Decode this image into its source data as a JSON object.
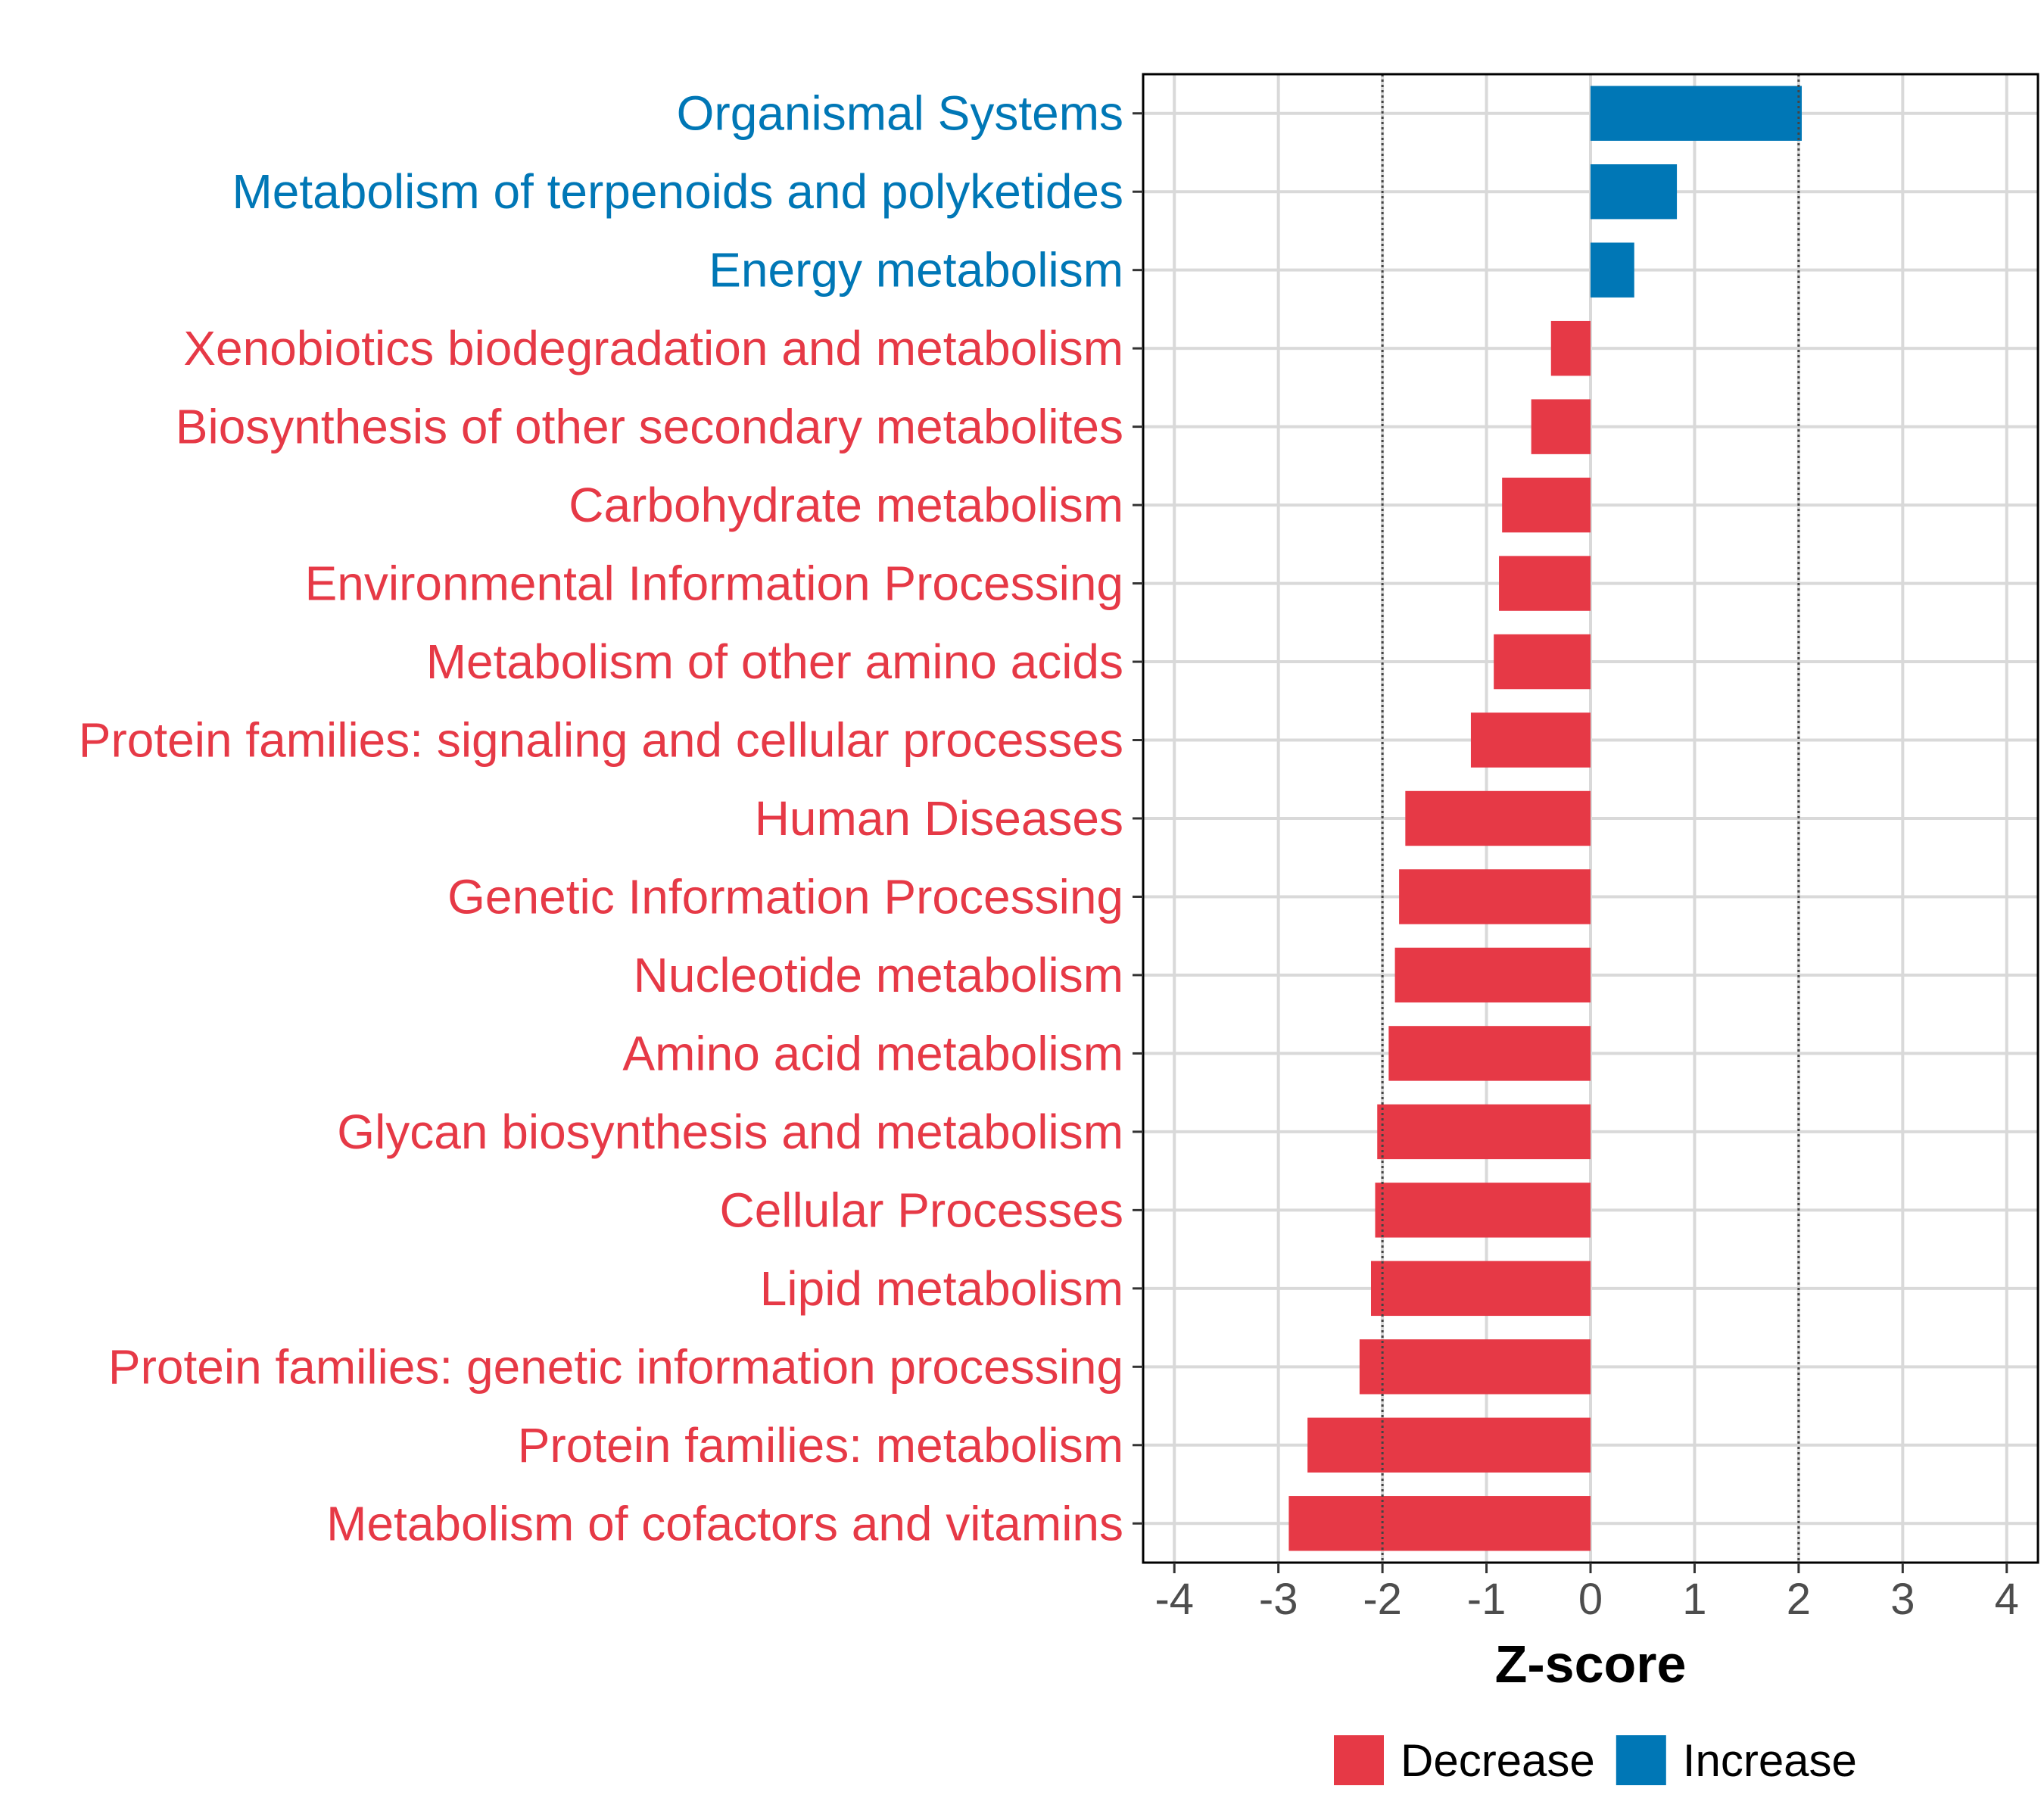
{
  "chart_data": {
    "type": "bar",
    "orientation": "horizontal",
    "xlabel": "Z-score",
    "ylabel": "",
    "xlim": [
      -4.3,
      4.3
    ],
    "xticks": [
      -4,
      -3,
      -2,
      -1,
      0,
      1,
      2,
      3,
      4
    ],
    "xtick_labels": [
      "-4",
      "-3",
      "-2",
      "-1",
      "0",
      "1",
      "2",
      "3",
      "4"
    ],
    "reference_lines": [
      -2,
      2
    ],
    "grid": true,
    "categories": [
      "Organismal Systems",
      "Metabolism of terpenoids and polyketides",
      "Energy metabolism",
      "Xenobiotics biodegradation and metabolism",
      "Biosynthesis of other secondary metabolites",
      "Carbohydrate metabolism",
      "Environmental Information Processing",
      "Metabolism of other amino acids",
      "Protein families: signaling and cellular processes",
      "Human Diseases",
      "Genetic Information Processing",
      "Nucleotide metabolism",
      "Amino acid metabolism",
      "Glycan biosynthesis and metabolism",
      "Cellular Processes",
      "Lipid metabolism",
      "Protein families: genetic information processing",
      "Protein families: metabolism",
      "Metabolism of cofactors and vitamins"
    ],
    "values": [
      2.03,
      0.83,
      0.42,
      -0.38,
      -0.57,
      -0.85,
      -0.88,
      -0.93,
      -1.15,
      -1.78,
      -1.84,
      -1.88,
      -1.94,
      -2.05,
      -2.07,
      -2.11,
      -2.22,
      -2.72,
      -2.9
    ],
    "groups": [
      "Increase",
      "Increase",
      "Increase",
      "Decrease",
      "Decrease",
      "Decrease",
      "Decrease",
      "Decrease",
      "Decrease",
      "Decrease",
      "Decrease",
      "Decrease",
      "Decrease",
      "Decrease",
      "Decrease",
      "Decrease",
      "Decrease",
      "Decrease",
      "Decrease"
    ],
    "colors": {
      "Decrease": "#E63946",
      "Increase": "#0077B6"
    },
    "legend": {
      "position": "bottom",
      "entries": [
        "Decrease",
        "Increase"
      ]
    }
  }
}
